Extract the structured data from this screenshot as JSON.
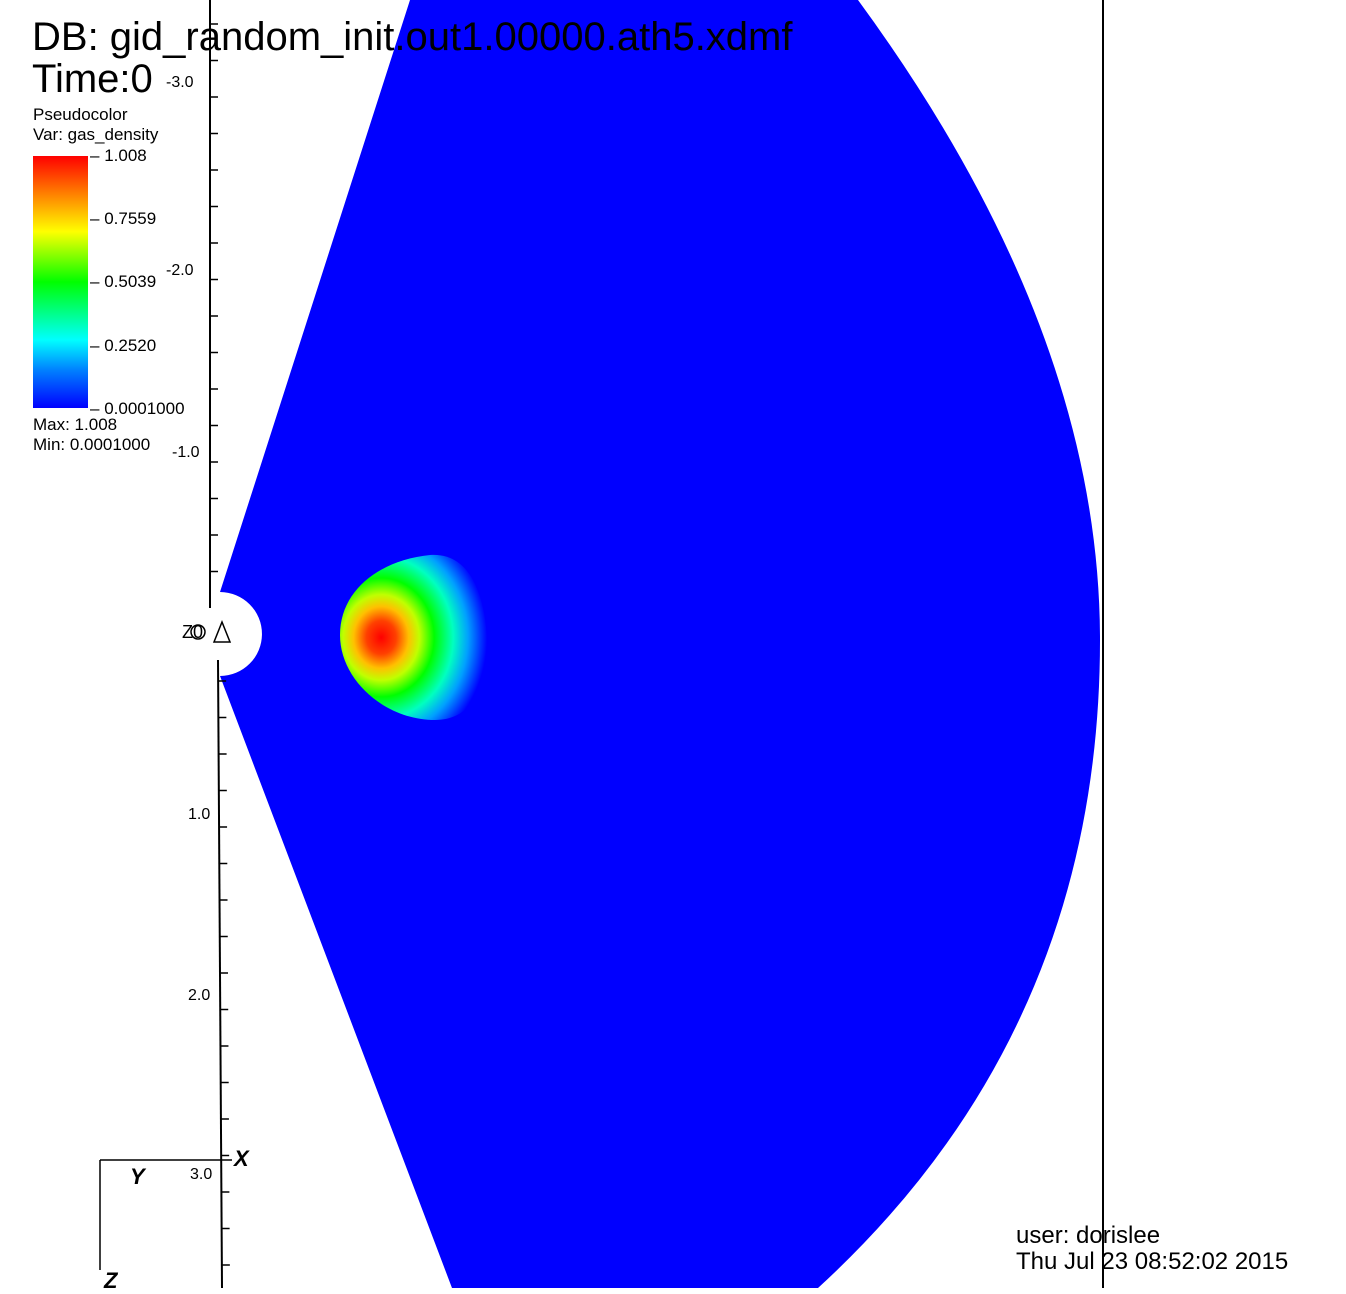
{
  "header": {
    "db_label": "DB: gid_random_init.out1.00000.ath5.xdmf",
    "time_label": "Time:0"
  },
  "legend": {
    "plot_type": "Pseudocolor",
    "variable": "Var: gas_density",
    "ticks": [
      "1.008",
      "0.7559",
      "0.5039",
      "0.2520",
      "0.0001000"
    ],
    "max_label": "Max:  1.008",
    "min_label": "Min:  0.0001000",
    "colormap": [
      "#ff0000",
      "#ff8000",
      "#ffff00",
      "#00ff00",
      "#00ffff",
      "#0080ff",
      "#0000ff"
    ]
  },
  "axis": {
    "tick_labels": [
      "-3.0",
      "-2.0",
      "-1.0",
      "1.0",
      "2.0",
      "3.0"
    ],
    "origin_label": "Z0"
  },
  "triad": {
    "x": "X",
    "y": "Y",
    "z": "Z"
  },
  "footer": {
    "user": "user: dorislee",
    "date": "Thu Jul 23 08:52:02 2015"
  },
  "colors": {
    "field_background": "#0000ff"
  }
}
